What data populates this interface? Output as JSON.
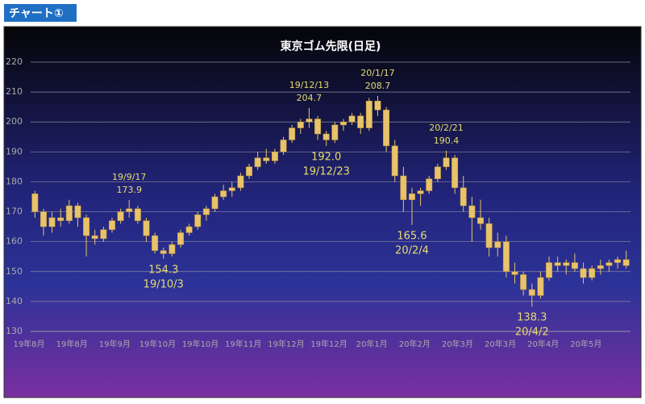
{
  "header": {
    "title": "チャート①"
  },
  "chart_data": {
    "type": "candlestick",
    "title": "東京ゴム先限(日足)",
    "categories": [
      "19年8月",
      null,
      null,
      null,
      null,
      "19年8月",
      null,
      null,
      null,
      null,
      "19年9月",
      null,
      null,
      null,
      null,
      "19年10月",
      null,
      null,
      null,
      null,
      "19年10月",
      null,
      null,
      null,
      null,
      "19年11月",
      null,
      null,
      null,
      null,
      "19年12月",
      null,
      null,
      null,
      null,
      "19年12月",
      null,
      null,
      null,
      null,
      "20年1月",
      null,
      null,
      null,
      null,
      "20年2月",
      null,
      null,
      null,
      null,
      "20年3月",
      null,
      null,
      null,
      null,
      "20年3月",
      null,
      null,
      null,
      null,
      "20年4月",
      null,
      null,
      null,
      null,
      "20年5月",
      null,
      null,
      null,
      null
    ],
    "open": [
      176,
      170,
      165,
      168,
      167,
      172,
      168,
      162,
      161,
      164,
      167,
      170,
      171,
      167,
      162,
      157,
      156,
      159,
      163,
      165,
      169,
      171,
      175,
      177,
      178,
      182,
      185,
      188,
      187,
      190,
      194,
      198,
      200,
      201,
      196,
      194,
      199,
      200,
      202,
      198,
      207,
      204,
      192,
      182,
      174,
      176,
      177,
      181,
      185,
      188,
      178,
      172,
      168,
      166,
      158,
      160,
      150,
      149,
      144,
      142,
      148,
      153,
      152,
      153,
      151,
      148,
      151,
      152,
      153,
      154
    ],
    "high": [
      177,
      171,
      170,
      171,
      174,
      173,
      169,
      164,
      165,
      168,
      171,
      173.9,
      172,
      168,
      163,
      158,
      160,
      164,
      166,
      170,
      172,
      176,
      179,
      180,
      183,
      186,
      190,
      191,
      191,
      195,
      199,
      201,
      204.7,
      202,
      197,
      200,
      201,
      203,
      203,
      208,
      208.7,
      205,
      194,
      185,
      178,
      178,
      182,
      186,
      190.4,
      189,
      182,
      175,
      174,
      168,
      163,
      162,
      153,
      150,
      146,
      150,
      155,
      155,
      154,
      156,
      153,
      152,
      154,
      154,
      155,
      157
    ],
    "low": [
      168,
      162,
      163,
      165,
      166,
      165,
      155,
      159,
      160,
      163,
      166,
      168,
      166,
      160,
      156,
      154.3,
      155,
      158,
      162,
      164,
      167,
      170,
      174,
      175,
      177,
      181,
      184,
      186,
      186,
      189,
      193,
      196,
      198,
      194,
      192.0,
      193,
      197,
      199,
      196,
      197,
      202,
      190,
      180,
      170,
      165.6,
      172,
      176,
      180,
      184,
      176,
      170,
      160,
      164,
      155,
      155,
      148,
      146,
      142,
      138.3,
      141,
      147,
      150,
      149,
      150,
      146,
      147,
      149,
      150,
      151,
      151
    ],
    "close": [
      170,
      165,
      168,
      167,
      172,
      168,
      162,
      161,
      164,
      167,
      170,
      171,
      167,
      162,
      157,
      156,
      159,
      163,
      165,
      169,
      171,
      175,
      177,
      178,
      182,
      185,
      188,
      187,
      190,
      194,
      198,
      200,
      201,
      196,
      194,
      199,
      200,
      202,
      198,
      207,
      204,
      192,
      182,
      174,
      176,
      177,
      181,
      185,
      188,
      178,
      172,
      168,
      166,
      158,
      160,
      150,
      149,
      144,
      142,
      148,
      153,
      152,
      153,
      151,
      148,
      151,
      152,
      153,
      154,
      152
    ],
    "color": "#e8c36a",
    "annotations": [
      {
        "date": "19/9/17",
        "value": 173.9
      },
      {
        "date": "19/10/3",
        "value": 154.3
      },
      {
        "date": "19/12/13",
        "value": 204.7
      },
      {
        "date": "19/12/23",
        "value": {
          "value": 192.0,
          "label": "192.0"
        }
      },
      {
        "date": "20/1/17",
        "value": 208.7
      },
      {
        "date": "20/2/4",
        "value": 165.6
      },
      {
        "date": "20/2/21",
        "value": 190.4
      },
      {
        "date": "20/4/2",
        "value": 138.3
      }
    ],
    "annotation_color": "#e6dc6e",
    "ylim": [
      130,
      220
    ],
    "yticks": [
      130,
      140,
      150,
      160,
      170,
      180,
      190,
      200,
      210,
      220
    ],
    "grid": true
  }
}
